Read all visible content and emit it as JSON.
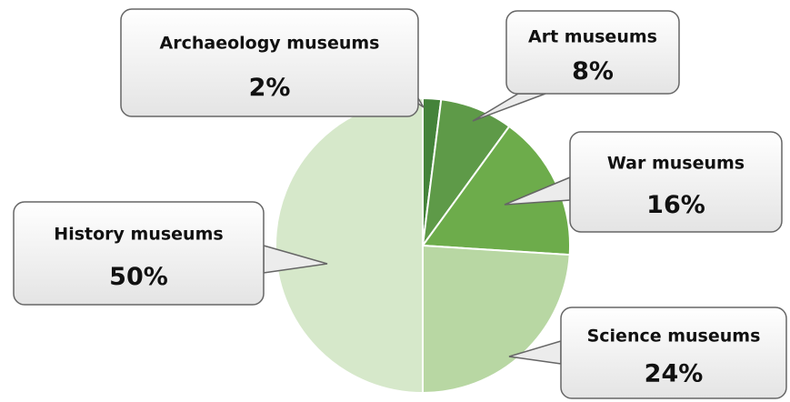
{
  "chart_data": {
    "type": "pie",
    "categories": [
      "Archaeology museums",
      "Art museums",
      "War museums",
      "Science museums",
      "History museums"
    ],
    "values": [
      2,
      8,
      16,
      24,
      50
    ],
    "value_labels": [
      "2%",
      "8%",
      "16%",
      "24%",
      "50%"
    ],
    "colors": [
      "#44833a",
      "#5e9a48",
      "#6dac4b",
      "#b8d7a3",
      "#d6e8ca"
    ]
  }
}
